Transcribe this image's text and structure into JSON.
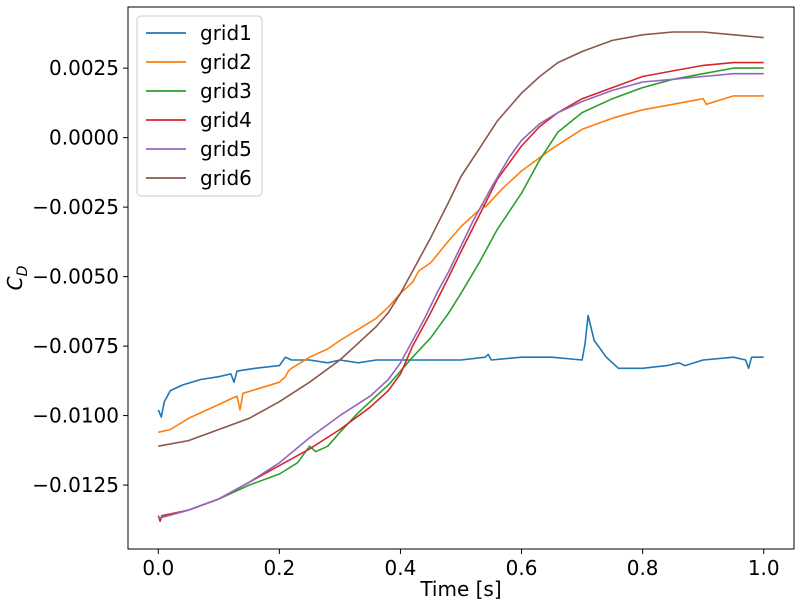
{
  "chart_data": {
    "type": "line",
    "title": "",
    "xlabel": "Time [s]",
    "ylabel_main": "C",
    "ylabel_sub": "D",
    "xlim": [
      -0.05,
      1.05
    ],
    "ylim": [
      -0.0148,
      0.0047
    ],
    "xticks": [
      0.0,
      0.2,
      0.4,
      0.6,
      0.8,
      1.0
    ],
    "xtick_labels": [
      "0.0",
      "0.2",
      "0.4",
      "0.6",
      "0.8",
      "1.0"
    ],
    "yticks": [
      -0.0125,
      -0.01,
      -0.0075,
      -0.005,
      -0.0025,
      0.0,
      0.0025
    ],
    "ytick_labels": [
      "−0.0125",
      "−0.0100",
      "−0.0075",
      "−0.0050",
      "−0.0025",
      "0.0000",
      "0.0025"
    ],
    "grid": false,
    "legend_position": "top-left",
    "series": [
      {
        "name": "grid1",
        "color": "#1f77b4",
        "x": [
          0.0,
          0.005,
          0.01,
          0.02,
          0.04,
          0.07,
          0.1,
          0.12,
          0.125,
          0.13,
          0.16,
          0.2,
          0.21,
          0.22,
          0.25,
          0.28,
          0.3,
          0.33,
          0.36,
          0.4,
          0.45,
          0.5,
          0.54,
          0.545,
          0.55,
          0.6,
          0.65,
          0.7,
          0.705,
          0.71,
          0.72,
          0.74,
          0.76,
          0.8,
          0.84,
          0.86,
          0.87,
          0.9,
          0.95,
          0.97,
          0.975,
          0.98,
          1.0
        ],
        "y": [
          -0.0098,
          -0.01005,
          -0.0095,
          -0.0091,
          -0.0089,
          -0.0087,
          -0.0086,
          -0.0085,
          -0.0088,
          -0.0084,
          -0.0083,
          -0.0082,
          -0.0079,
          -0.008,
          -0.008,
          -0.0081,
          -0.008,
          -0.0081,
          -0.008,
          -0.008,
          -0.008,
          -0.008,
          -0.0079,
          -0.0078,
          -0.008,
          -0.0079,
          -0.0079,
          -0.008,
          -0.0074,
          -0.0064,
          -0.0073,
          -0.0079,
          -0.0083,
          -0.0083,
          -0.0082,
          -0.0081,
          -0.0082,
          -0.008,
          -0.0079,
          -0.008,
          -0.0083,
          -0.0079,
          -0.0079
        ]
      },
      {
        "name": "grid2",
        "color": "#ff7f0e",
        "x": [
          0.0,
          0.02,
          0.05,
          0.08,
          0.1,
          0.12,
          0.13,
          0.135,
          0.14,
          0.17,
          0.2,
          0.21,
          0.215,
          0.22,
          0.25,
          0.28,
          0.3,
          0.33,
          0.36,
          0.38,
          0.4,
          0.42,
          0.43,
          0.45,
          0.48,
          0.5,
          0.53,
          0.535,
          0.54,
          0.57,
          0.6,
          0.65,
          0.7,
          0.75,
          0.8,
          0.85,
          0.9,
          0.9,
          0.905,
          0.95,
          1.0
        ],
        "y": [
          -0.0106,
          -0.0105,
          -0.0101,
          -0.0098,
          -0.0096,
          -0.0094,
          -0.0093,
          -0.0098,
          -0.0092,
          -0.009,
          -0.0088,
          -0.0086,
          -0.0084,
          -0.0083,
          -0.0079,
          -0.0076,
          -0.0073,
          -0.0069,
          -0.0065,
          -0.0061,
          -0.0056,
          -0.0052,
          -0.0048,
          -0.0045,
          -0.0037,
          -0.0032,
          -0.0026,
          -0.0024,
          -0.0025,
          -0.0018,
          -0.0012,
          -0.0004,
          0.0003,
          0.0007,
          0.001,
          0.0012,
          0.0014,
          0.0014,
          0.0012,
          0.0015,
          0.0015
        ]
      },
      {
        "name": "grid3",
        "color": "#2ca02c",
        "x": [
          0.0,
          0.05,
          0.1,
          0.15,
          0.2,
          0.23,
          0.25,
          0.26,
          0.28,
          0.3,
          0.33,
          0.36,
          0.38,
          0.4,
          0.42,
          0.45,
          0.48,
          0.5,
          0.53,
          0.56,
          0.6,
          0.63,
          0.66,
          0.7,
          0.75,
          0.8,
          0.85,
          0.9,
          0.95,
          1.0
        ],
        "y": [
          -0.0137,
          -0.0134,
          -0.013,
          -0.0125,
          -0.0121,
          -0.0117,
          -0.0111,
          -0.0113,
          -0.0111,
          -0.0106,
          -0.0099,
          -0.0093,
          -0.0089,
          -0.0084,
          -0.0079,
          -0.0072,
          -0.0063,
          -0.0056,
          -0.0045,
          -0.0033,
          -0.002,
          -0.0008,
          0.0002,
          0.0009,
          0.0014,
          0.0018,
          0.0021,
          0.0023,
          0.0025,
          0.0025
        ]
      },
      {
        "name": "grid4",
        "color": "#d62728",
        "x": [
          0.0,
          0.003,
          0.006,
          0.05,
          0.1,
          0.15,
          0.2,
          0.25,
          0.3,
          0.35,
          0.38,
          0.4,
          0.42,
          0.45,
          0.48,
          0.5,
          0.53,
          0.56,
          0.6,
          0.63,
          0.66,
          0.7,
          0.75,
          0.8,
          0.85,
          0.9,
          0.95,
          1.0
        ],
        "y": [
          -0.0136,
          -0.0138,
          -0.0136,
          -0.0134,
          -0.013,
          -0.0124,
          -0.0118,
          -0.0112,
          -0.0105,
          -0.0097,
          -0.0091,
          -0.0085,
          -0.0075,
          -0.0063,
          -0.005,
          -0.0041,
          -0.0028,
          -0.0015,
          -0.0003,
          0.0004,
          0.0009,
          0.0014,
          0.0018,
          0.0022,
          0.0024,
          0.0026,
          0.0027,
          0.0027
        ]
      },
      {
        "name": "grid5",
        "color": "#9467bd",
        "x": [
          0.0,
          0.05,
          0.1,
          0.15,
          0.2,
          0.25,
          0.3,
          0.35,
          0.38,
          0.4,
          0.42,
          0.44,
          0.46,
          0.48,
          0.5,
          0.52,
          0.55,
          0.58,
          0.6,
          0.63,
          0.66,
          0.7,
          0.75,
          0.8,
          0.85,
          0.9,
          0.95,
          1.0
        ],
        "y": [
          -0.0137,
          -0.0134,
          -0.013,
          -0.0124,
          -0.0117,
          -0.0108,
          -0.01,
          -0.0093,
          -0.0087,
          -0.0081,
          -0.0073,
          -0.0065,
          -0.0056,
          -0.0048,
          -0.0039,
          -0.003,
          -0.0018,
          -0.0007,
          -0.0001,
          0.0005,
          0.0009,
          0.0013,
          0.0017,
          0.002,
          0.0021,
          0.0022,
          0.0023,
          0.0023
        ]
      },
      {
        "name": "grid6",
        "color": "#8c564b",
        "x": [
          0.0,
          0.05,
          0.1,
          0.15,
          0.2,
          0.25,
          0.3,
          0.33,
          0.36,
          0.38,
          0.4,
          0.42,
          0.45,
          0.48,
          0.5,
          0.53,
          0.56,
          0.6,
          0.63,
          0.66,
          0.7,
          0.75,
          0.8,
          0.85,
          0.9,
          0.95,
          1.0
        ],
        "y": [
          -0.0111,
          -0.0109,
          -0.0105,
          -0.0101,
          -0.0095,
          -0.0088,
          -0.008,
          -0.0074,
          -0.0068,
          -0.0063,
          -0.0056,
          -0.0048,
          -0.0036,
          -0.0023,
          -0.0014,
          -0.0004,
          0.0006,
          0.0016,
          0.0022,
          0.0027,
          0.0031,
          0.0035,
          0.0037,
          0.0038,
          0.0038,
          0.0037,
          0.0036
        ]
      }
    ]
  }
}
